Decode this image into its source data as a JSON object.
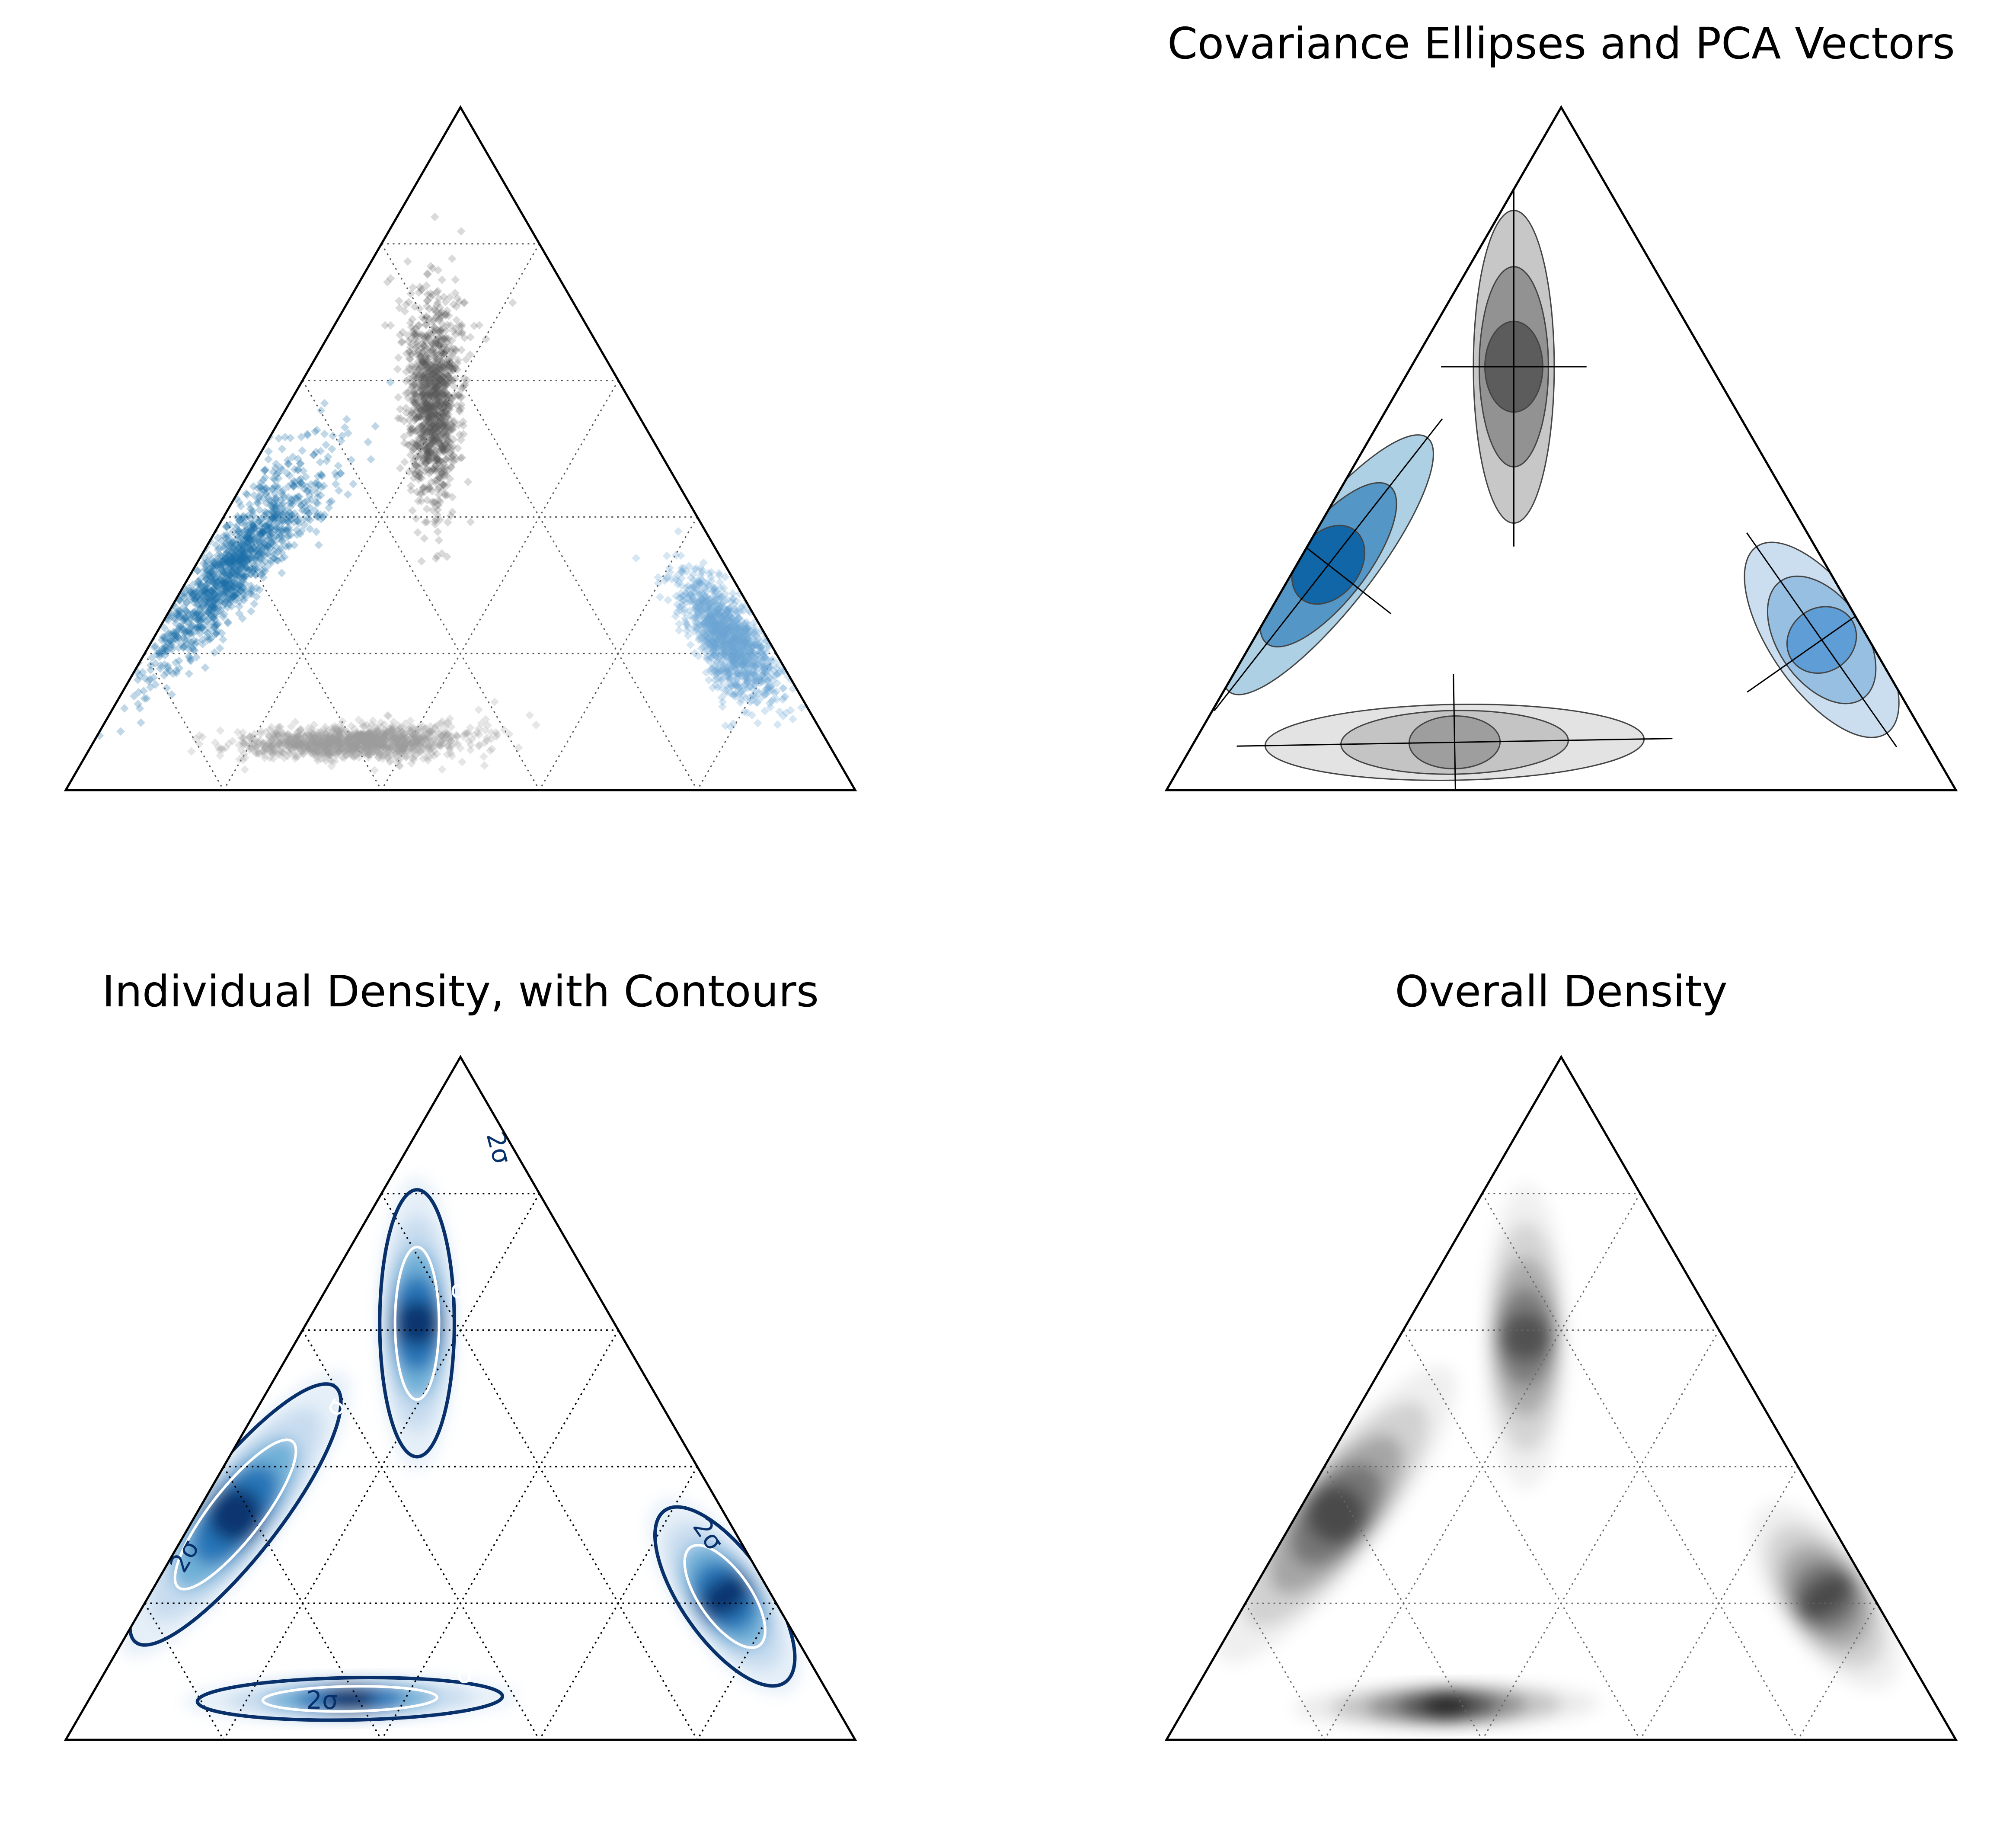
{
  "figure": {
    "layout": "2x2 grid of ternary diagrams",
    "gridlines": "dotted, 5 divisions per axis"
  },
  "panels": [
    {
      "id": "scatter",
      "title": "",
      "type": "ternary-scatter"
    },
    {
      "id": "covariance",
      "title": "Covariance Ellipses and PCA Vectors",
      "type": "ternary-contour"
    },
    {
      "id": "individual_density",
      "title": "Individual Density, with Contours",
      "type": "ternary-density"
    },
    {
      "id": "overall_density",
      "title": "Overall Density",
      "type": "ternary-density"
    }
  ],
  "contour_labels": {
    "one_sigma": "σ",
    "two_sigma": "2σ"
  },
  "colors": {
    "group_left": "#1b6fa8",
    "group_top": "#555555",
    "group_right": "#6aa5d4",
    "group_bottom": "#9a9a9a",
    "blue_fill_light": "#a9cde3",
    "blue_fill_mid": "#4f94c4",
    "blue_fill_dark": "#0d63a5",
    "blue_right_light": "#c8dcef",
    "blue_right_mid": "#93bde0",
    "blue_right_dark": "#5b9bd5",
    "grey_fill_light": "#c4c4c4",
    "grey_fill_mid": "#8f8f8f",
    "grey_fill_dark": "#5a5a5a",
    "bottom_fill_light": "#e2e2e2",
    "bottom_fill_mid": "#c2c2c2",
    "bottom_fill_dark": "#9c9c9c",
    "contour_dark": "#08306b",
    "density_peak": "#08306b",
    "overall_density_peak": "#000000"
  },
  "chart_data": [
    {
      "type": "scatter",
      "coords": "ternary (a = bottom-left, b = bottom-right, c = top); a + b + c = 1",
      "title": "",
      "grid": true,
      "series": [
        {
          "name": "left",
          "color_key": "group_left",
          "n_points": 1300,
          "center": [
            0.62,
            0.05,
            0.33
          ],
          "spread_major": 0.17,
          "spread_minor": 0.035,
          "axis_dir": [
            0,
            0,
            1
          ]
        },
        {
          "name": "top",
          "color_key": "group_top",
          "n_points": 1200,
          "center": [
            0.25,
            0.18,
            0.57
          ],
          "spread_major": 0.13,
          "spread_minor": 0.03,
          "axis_dir": [
            0,
            0,
            1
          ]
        },
        {
          "name": "right",
          "color_key": "group_right",
          "n_points": 1200,
          "center": [
            0.05,
            0.73,
            0.22
          ],
          "spread_major": 0.09,
          "spread_minor": 0.035,
          "axis_dir": [
            0,
            0,
            1
          ]
        },
        {
          "name": "bottom",
          "color_key": "group_bottom",
          "n_points": 1300,
          "center": [
            0.6,
            0.33,
            0.07
          ],
          "spread_major": 0.14,
          "spread_minor": 0.018,
          "axis_dir": [
            0,
            0,
            1
          ]
        }
      ]
    },
    {
      "type": "contour",
      "coords": "ternary (a, b, c)",
      "title": "Covariance Ellipses and PCA Vectors",
      "grid": false,
      "series": [
        {
          "name": "left",
          "levels": [
            "blue_fill_light",
            "blue_fill_mid",
            "blue_fill_dark"
          ],
          "center": [
            0.63,
            0.04,
            0.33
          ],
          "spread_major": 0.17,
          "spread_minor": 0.035,
          "axis_dir": [
            0,
            0,
            1
          ],
          "rel_levels": [
            1,
            0.62,
            0.27
          ]
        },
        {
          "name": "top",
          "levels": [
            "grey_fill_light",
            "grey_fill_mid",
            "grey_fill_dark"
          ],
          "center": [
            0.25,
            0.13,
            0.62
          ],
          "spread_major": 0.165,
          "spread_minor": 0.032,
          "axis_dir": [
            0,
            0,
            1
          ],
          "rel_levels": [
            1,
            0.64,
            0.29
          ]
        },
        {
          "name": "right",
          "levels": [
            "blue_right_light",
            "blue_right_mid",
            "blue_right_dark"
          ],
          "center": [
            0.06,
            0.72,
            0.22
          ],
          "spread_major": 0.12,
          "spread_minor": 0.04,
          "axis_dir": [
            0,
            0,
            1
          ],
          "rel_levels": [
            1,
            0.63,
            0.28
          ]
        },
        {
          "name": "bottom",
          "levels": [
            "bottom_fill_light",
            "bottom_fill_mid",
            "bottom_fill_dark"
          ],
          "center": [
            0.6,
            0.33,
            0.07
          ],
          "spread_major": 0.2,
          "spread_minor": 0.03,
          "axis_dir": [
            0,
            0,
            1
          ],
          "rel_levels": [
            1,
            0.6,
            0.24
          ]
        }
      ]
    },
    {
      "type": "heatmap",
      "coords": "ternary (a, b, c)",
      "title": "Individual Density, with Contours",
      "grid": true,
      "colormap": "Blues",
      "series": [
        {
          "name": "left",
          "center": [
            0.62,
            0.05,
            0.33
          ],
          "spread_major": 0.17,
          "spread_minor": 0.035,
          "axis_dir": [
            0,
            0,
            1
          ]
        },
        {
          "name": "top",
          "center": [
            0.25,
            0.14,
            0.61
          ],
          "spread_major": 0.14,
          "spread_minor": 0.03,
          "axis_dir": [
            0,
            0,
            1
          ]
        },
        {
          "name": "right",
          "center": [
            0.06,
            0.73,
            0.21
          ],
          "spread_major": 0.11,
          "spread_minor": 0.035,
          "axis_dir": [
            0,
            0,
            1
          ]
        },
        {
          "name": "bottom",
          "center": [
            0.61,
            0.33,
            0.06
          ],
          "spread_major": 0.16,
          "spread_minor": 0.017,
          "axis_dir": [
            0,
            0,
            1
          ]
        }
      ],
      "contours": [
        "σ",
        "2σ"
      ]
    },
    {
      "type": "heatmap",
      "coords": "ternary (a, b, c)",
      "title": "Overall Density",
      "grid": true,
      "colormap": "Greys",
      "series": [
        {
          "name": "left",
          "weight": 0.75,
          "center": [
            0.62,
            0.05,
            0.33
          ],
          "spread_major": 0.17,
          "spread_minor": 0.035,
          "axis_dir": [
            0,
            0,
            1
          ]
        },
        {
          "name": "top",
          "weight": 0.7,
          "center": [
            0.25,
            0.16,
            0.59
          ],
          "spread_major": 0.14,
          "spread_minor": 0.03,
          "axis_dir": [
            0,
            0,
            1
          ]
        },
        {
          "name": "right",
          "weight": 0.75,
          "center": [
            0.06,
            0.73,
            0.21
          ],
          "spread_major": 0.1,
          "spread_minor": 0.035,
          "axis_dir": [
            0,
            0,
            1
          ]
        },
        {
          "name": "bottom",
          "weight": 1.0,
          "center": [
            0.62,
            0.33,
            0.05
          ],
          "spread_major": 0.14,
          "spread_minor": 0.016,
          "axis_dir": [
            0,
            0,
            1
          ]
        }
      ]
    }
  ]
}
